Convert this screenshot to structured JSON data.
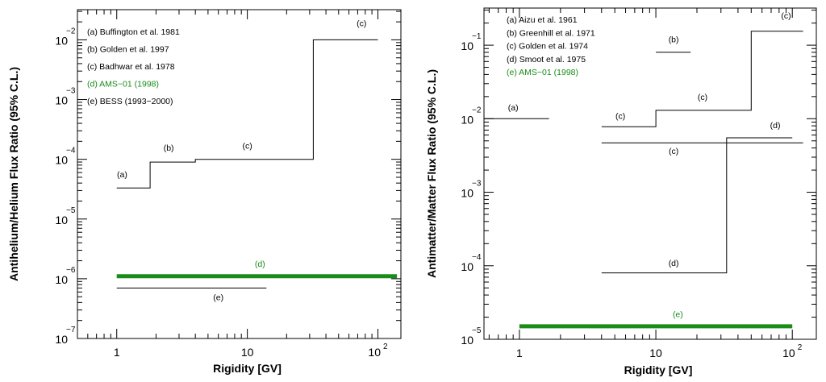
{
  "chart_data": [
    {
      "type": "line",
      "xlabel": "Rigidity   [GV]",
      "ylabel": "Antihelium/Helium Flux Ratio (95% C.L.)",
      "x_scale": "log",
      "y_scale": "log",
      "xlim": [
        0.5,
        150
      ],
      "ylim": [
        1e-07,
        0.032
      ],
      "x_tick_labels": [
        {
          "value": 1,
          "base": "1",
          "exp": ""
        },
        {
          "value": 10,
          "base": "10",
          "exp": ""
        },
        {
          "value": 100,
          "base": "10",
          "exp": "2"
        }
      ],
      "y_tick_labels": [
        {
          "value": 0.01,
          "base": "10",
          "exp": "−2"
        },
        {
          "value": 0.001,
          "base": "10",
          "exp": "−3"
        },
        {
          "value": 0.0001,
          "base": "10",
          "exp": "−4"
        },
        {
          "value": 1e-05,
          "base": "10",
          "exp": "−5"
        },
        {
          "value": 1e-06,
          "base": "10",
          "exp": "−6"
        },
        {
          "value": 1e-07,
          "base": "10",
          "exp": "−7"
        }
      ],
      "legend": [
        {
          "text": "(a) Buffington et al. 1981",
          "color": "#000000"
        },
        {
          "text": "(b) Golden et al. 1997",
          "color": "#000000"
        },
        {
          "text": "(c) Badhwar et al. 1978",
          "color": "#000000"
        },
        {
          "text": "(d) AMS−01 (1998)",
          "color": "#1a8c1a"
        },
        {
          "text": "(e) BESS (1993−2000)",
          "color": "#000000"
        }
      ],
      "legend_position": "top-left",
      "series": [
        {
          "label": "(a)",
          "color": "#000000",
          "width": 1,
          "points": [
            [
              1.0,
              3.3e-05
            ],
            [
              1.8,
              3.3e-05
            ],
            [
              1.8,
              9e-05
            ],
            [
              4.0,
              9e-05
            ],
            [
              4.0,
              0.0001
            ],
            [
              32,
              0.0001
            ],
            [
              32,
              0.01
            ],
            [
              100,
              0.01
            ]
          ]
        },
        {
          "label": "(d)",
          "color": "#1a8c1a",
          "width": 5,
          "points": [
            [
              1.0,
              1.1e-06
            ],
            [
              140,
              1.1e-06
            ]
          ]
        },
        {
          "label": "(e)",
          "color": "#000000",
          "width": 1,
          "points": [
            [
              1.0,
              7e-07
            ],
            [
              14,
              7e-07
            ]
          ]
        }
      ],
      "annotations": [
        {
          "text": "(a)",
          "x": 1.1,
          "y": 5e-05,
          "color": "#000000"
        },
        {
          "text": "(b)",
          "x": 2.5,
          "y": 0.00014,
          "color": "#000000"
        },
        {
          "text": "(c)",
          "x": 10,
          "y": 0.00015,
          "color": "#000000"
        },
        {
          "text": "(c)",
          "x": 75,
          "y": 0.017,
          "color": "#000000"
        },
        {
          "text": "(d)",
          "x": 12.5,
          "y": 1.6e-06,
          "color": "#1a8c1a"
        },
        {
          "text": "(e)",
          "x": 6.0,
          "y": 4.4e-07,
          "color": "#000000"
        }
      ]
    },
    {
      "type": "line",
      "xlabel": "Rigidity   [GV]",
      "ylabel": "Antimatter/Matter Flux Ratio (95% C.L.)",
      "x_scale": "log",
      "y_scale": "log",
      "xlim": [
        0.55,
        150
      ],
      "ylim": [
        1e-05,
        0.32
      ],
      "x_tick_labels": [
        {
          "value": 1,
          "base": "1",
          "exp": ""
        },
        {
          "value": 10,
          "base": "10",
          "exp": ""
        },
        {
          "value": 100,
          "base": "10",
          "exp": "2"
        }
      ],
      "y_tick_labels": [
        {
          "value": 0.1,
          "base": "10",
          "exp": "−1"
        },
        {
          "value": 0.01,
          "base": "10",
          "exp": "−2"
        },
        {
          "value": 0.001,
          "base": "10",
          "exp": "−3"
        },
        {
          "value": 0.0001,
          "base": "10",
          "exp": "−4"
        },
        {
          "value": 1e-05,
          "base": "10",
          "exp": "−5"
        }
      ],
      "legend": [
        {
          "text": "(a) Aizu et al. 1961",
          "color": "#000000"
        },
        {
          "text": "(b) Greenhill et al. 1971",
          "color": "#000000"
        },
        {
          "text": "(c) Golden  et al. 1974",
          "color": "#000000"
        },
        {
          "text": "(d) Smoot et al. 1975",
          "color": "#000000"
        },
        {
          "text": "(e) AMS−01 (1998)",
          "color": "#1a8c1a"
        }
      ],
      "legend_position": "top-left",
      "series": [
        {
          "label": "(a)",
          "color": "#000000",
          "width": 1,
          "points": [
            [
              0.55,
              0.01
            ],
            [
              1.65,
              0.01
            ]
          ]
        },
        {
          "label": "(b)",
          "color": "#000000",
          "width": 1,
          "points": [
            [
              10,
              0.08
            ],
            [
              18,
              0.08
            ]
          ]
        },
        {
          "label": "(c)",
          "color": "#000000",
          "width": 1,
          "points": [
            [
              4,
              0.0078
            ],
            [
              10,
              0.0078
            ],
            [
              10,
              0.013
            ],
            [
              50,
              0.013
            ],
            [
              50,
              0.155
            ],
            [
              120,
              0.155
            ]
          ]
        },
        {
          "label": "(c)",
          "color": "#000000",
          "width": 1,
          "points": [
            [
              4,
              0.0047
            ],
            [
              120,
              0.0047
            ]
          ]
        },
        {
          "label": "(d)",
          "color": "#000000",
          "width": 1,
          "points": [
            [
              4,
              8e-05
            ],
            [
              33,
              8e-05
            ],
            [
              33,
              0.0055
            ],
            [
              100,
              0.0055
            ]
          ]
        },
        {
          "label": "(e)",
          "color": "#1a8c1a",
          "width": 5,
          "points": [
            [
              1.0,
              1.5e-05
            ],
            [
              100,
              1.5e-05
            ]
          ]
        }
      ],
      "annotations": [
        {
          "text": "(a)",
          "x": 0.9,
          "y": 0.013,
          "color": "#000000"
        },
        {
          "text": "(b)",
          "x": 13.5,
          "y": 0.11,
          "color": "#000000"
        },
        {
          "text": "(c)",
          "x": 5.5,
          "y": 0.01,
          "color": "#000000"
        },
        {
          "text": "(c)",
          "x": 22,
          "y": 0.018,
          "color": "#000000"
        },
        {
          "text": "(c)",
          "x": 90,
          "y": 0.23,
          "color": "#000000"
        },
        {
          "text": "(c)",
          "x": 13.5,
          "y": 0.0033,
          "color": "#000000"
        },
        {
          "text": "(d)",
          "x": 75,
          "y": 0.0074,
          "color": "#000000"
        },
        {
          "text": "(d)",
          "x": 13.5,
          "y": 0.0001,
          "color": "#000000"
        },
        {
          "text": "(e)",
          "x": 14.5,
          "y": 2e-05,
          "color": "#1a8c1a"
        }
      ]
    }
  ]
}
